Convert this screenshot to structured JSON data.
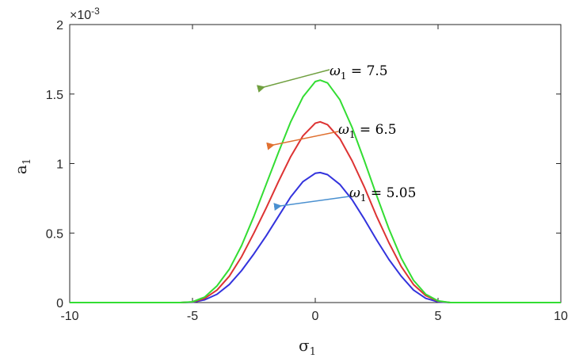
{
  "chart_data": {
    "type": "line",
    "xlabel": "σ",
    "xlabel_sub": "1",
    "ylabel": "a",
    "ylabel_sub": "1",
    "exponent_label": "×10",
    "exponent_power": "-3",
    "xlim": [
      -10,
      10
    ],
    "ylim": [
      0,
      2
    ],
    "x_ticks": [
      -10,
      -5,
      0,
      5,
      10
    ],
    "x_tick_labels": [
      "-10",
      "-5",
      "0",
      "5",
      "10"
    ],
    "y_ticks": [
      0,
      0.5,
      1,
      1.5,
      2
    ],
    "y_tick_labels": [
      "0",
      "0.5",
      "1",
      "1.5",
      "2"
    ],
    "grid": false,
    "series": [
      {
        "color": "#3333dd",
        "points": [
          [
            -10,
            0
          ],
          [
            -6,
            0
          ],
          [
            -5.5,
            0
          ],
          [
            -5,
            0.002
          ],
          [
            -4.5,
            0.02
          ],
          [
            -4,
            0.06
          ],
          [
            -3.5,
            0.13
          ],
          [
            -3,
            0.23
          ],
          [
            -2.5,
            0.35
          ],
          [
            -2,
            0.48
          ],
          [
            -1.5,
            0.62
          ],
          [
            -1,
            0.76
          ],
          [
            -0.5,
            0.87
          ],
          [
            0,
            0.93
          ],
          [
            0.2,
            0.935
          ],
          [
            0.5,
            0.92
          ],
          [
            1,
            0.85
          ],
          [
            1.5,
            0.74
          ],
          [
            2,
            0.6
          ],
          [
            2.5,
            0.45
          ],
          [
            3,
            0.31
          ],
          [
            3.5,
            0.19
          ],
          [
            4,
            0.09
          ],
          [
            4.5,
            0.03
          ],
          [
            5,
            0.005
          ],
          [
            5.5,
            0
          ],
          [
            10,
            0
          ]
        ]
      },
      {
        "color": "#dd3333",
        "points": [
          [
            -10,
            0
          ],
          [
            -6,
            0
          ],
          [
            -5.5,
            0
          ],
          [
            -5,
            0.004
          ],
          [
            -4.5,
            0.03
          ],
          [
            -4,
            0.09
          ],
          [
            -3.5,
            0.19
          ],
          [
            -3,
            0.33
          ],
          [
            -2.5,
            0.5
          ],
          [
            -2,
            0.68
          ],
          [
            -1.5,
            0.87
          ],
          [
            -1,
            1.05
          ],
          [
            -0.5,
            1.2
          ],
          [
            0,
            1.29
          ],
          [
            0.2,
            1.3
          ],
          [
            0.5,
            1.28
          ],
          [
            1,
            1.18
          ],
          [
            1.5,
            1.02
          ],
          [
            2,
            0.83
          ],
          [
            2.5,
            0.62
          ],
          [
            3,
            0.43
          ],
          [
            3.5,
            0.26
          ],
          [
            4,
            0.13
          ],
          [
            4.5,
            0.05
          ],
          [
            5,
            0.01
          ],
          [
            5.5,
            0
          ],
          [
            10,
            0
          ]
        ]
      },
      {
        "color": "#33dd33",
        "points": [
          [
            -10,
            0
          ],
          [
            -6,
            0
          ],
          [
            -5.5,
            0
          ],
          [
            -5,
            0.005
          ],
          [
            -4.5,
            0.04
          ],
          [
            -4,
            0.12
          ],
          [
            -3.5,
            0.24
          ],
          [
            -3,
            0.41
          ],
          [
            -2.5,
            0.62
          ],
          [
            -2,
            0.85
          ],
          [
            -1.5,
            1.08
          ],
          [
            -1,
            1.3
          ],
          [
            -0.5,
            1.48
          ],
          [
            0,
            1.59
          ],
          [
            0.2,
            1.6
          ],
          [
            0.5,
            1.58
          ],
          [
            1,
            1.46
          ],
          [
            1.5,
            1.26
          ],
          [
            2,
            1.02
          ],
          [
            2.5,
            0.77
          ],
          [
            3,
            0.53
          ],
          [
            3.5,
            0.32
          ],
          [
            4,
            0.16
          ],
          [
            4.5,
            0.06
          ],
          [
            5,
            0.012
          ],
          [
            5.5,
            0
          ],
          [
            10,
            0
          ]
        ]
      }
    ],
    "annotations": [
      {
        "label": "ω",
        "sub": "1",
        "value": " = 7.5",
        "arrow_color": "#70a040"
      },
      {
        "label": "ω",
        "sub": "1",
        "value": " = 6.5",
        "arrow_color": "#e07030"
      },
      {
        "label": "ω",
        "sub": "1",
        "value": " = 5.05",
        "arrow_color": "#4a90d0"
      }
    ]
  }
}
